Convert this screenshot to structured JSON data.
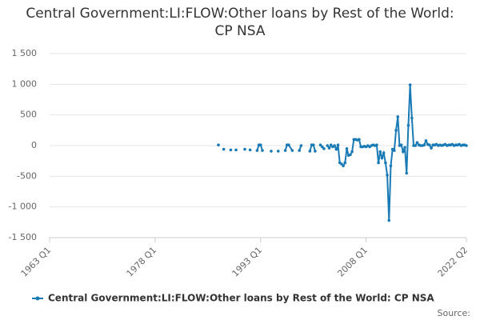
{
  "chart_data": {
    "type": "line",
    "title": "Central Government:LI:FLOW:Other loans by Rest of the World: CP NSA",
    "source": "Source:",
    "x": [
      "1987 Q1",
      null,
      "1987 Q4",
      null,
      "1988 Q4",
      null,
      "1989 Q3",
      null,
      "1990 Q4",
      null,
      "1991 Q3",
      null,
      "1992 Q3",
      "1992 Q4",
      "1993 Q1",
      "1993 Q2",
      null,
      "1994 Q3",
      null,
      "1995 Q3",
      null,
      "1996 Q3",
      "1996 Q4",
      "1997 Q1",
      "1997 Q3",
      null,
      "1998 Q3",
      "1998 Q4",
      null,
      "2000 Q1",
      "2000 Q2",
      "2000 Q3",
      "2000 Q4",
      null,
      "2001 Q3",
      "2001 Q4",
      "2002 Q1",
      null,
      "2002 Q3",
      "2002 Q4",
      "2003 Q1",
      "2003 Q2",
      "2003 Q3",
      "2003 Q4",
      "2004 Q1",
      "2004 Q2",
      "2004 Q3",
      "2004 Q4",
      "2005 Q1",
      "2005 Q2",
      "2005 Q3",
      "2005 Q4",
      "2006 Q1",
      "2006 Q2",
      "2006 Q3",
      "2006 Q4",
      "2007 Q1",
      "2007 Q2",
      "2007 Q3",
      "2007 Q4",
      "2008 Q1",
      "2008 Q2",
      "2008 Q3",
      "2008 Q4",
      "2009 Q1",
      "2009 Q2",
      "2009 Q3",
      "2009 Q4",
      "2010 Q1",
      "2010 Q2",
      "2010 Q3",
      "2010 Q4",
      "2011 Q1",
      "2011 Q2",
      "2011 Q3",
      "2011 Q4",
      "2012 Q1",
      "2012 Q2",
      "2012 Q3",
      "2012 Q4",
      "2013 Q1",
      "2013 Q2",
      "2013 Q3",
      "2013 Q4",
      "2014 Q1",
      "2014 Q2",
      "2014 Q3",
      "2014 Q4",
      "2015 Q1",
      "2015 Q2",
      "2015 Q3",
      "2015 Q4",
      "2016 Q1",
      "2016 Q2",
      "2016 Q3",
      "2016 Q4",
      "2017 Q1",
      "2017 Q2",
      "2017 Q3",
      "2017 Q4",
      "2018 Q1",
      "2018 Q2",
      "2018 Q3",
      "2018 Q4",
      "2019 Q1",
      "2019 Q2",
      "2019 Q3",
      "2019 Q4",
      "2020 Q1",
      "2020 Q2",
      "2020 Q3",
      "2020 Q4",
      "2021 Q1",
      "2021 Q2",
      "2021 Q3",
      "2021 Q4",
      "2022 Q1",
      "2022 Q2"
    ],
    "series": [
      {
        "name": "Central Government:LI:FLOW:Other loans by Rest of the World: CP NSA",
        "color": "#1a7ab5",
        "values": [
          10,
          null,
          -60,
          null,
          -70,
          null,
          -70,
          null,
          -60,
          null,
          -70,
          null,
          -80,
          10,
          10,
          -80,
          null,
          -90,
          null,
          -90,
          null,
          -80,
          10,
          10,
          -80,
          null,
          -80,
          0,
          null,
          -90,
          10,
          10,
          -90,
          null,
          10,
          -20,
          -50,
          null,
          0,
          -40,
          10,
          -20,
          0,
          -60,
          10,
          -280,
          -300,
          -330,
          -280,
          -50,
          -160,
          -150,
          -100,
          100,
          100,
          90,
          100,
          -20,
          -20,
          -10,
          -20,
          0,
          -20,
          0,
          10,
          0,
          10,
          -280,
          -100,
          -200,
          -120,
          -280,
          -480,
          -1220,
          -330,
          -60,
          -80,
          250,
          470,
          0,
          10,
          -100,
          -30,
          -450,
          330,
          990,
          450,
          0,
          0,
          50,
          10,
          0,
          0,
          10,
          80,
          20,
          10,
          -40,
          10,
          10,
          20,
          0,
          10,
          0,
          10,
          20,
          0,
          10,
          10,
          20,
          0,
          10,
          10,
          20,
          0,
          10,
          10,
          0
        ]
      }
    ],
    "xlim": [
      "1963 Q1",
      "2022 Q2"
    ],
    "xticks": [
      "1963 Q1",
      "1978 Q1",
      "1993 Q1",
      "2008 Q1",
      "2022 Q2"
    ],
    "ylim": [
      -1500,
      1500
    ],
    "yticks": [
      {
        "value": -1500,
        "label": "-1 500"
      },
      {
        "value": -1000,
        "label": "-1 000"
      },
      -500,
      0,
      500,
      {
        "value": 1000,
        "label": "1 000"
      },
      {
        "value": 1500,
        "label": "1 500"
      }
    ],
    "grid": true
  }
}
